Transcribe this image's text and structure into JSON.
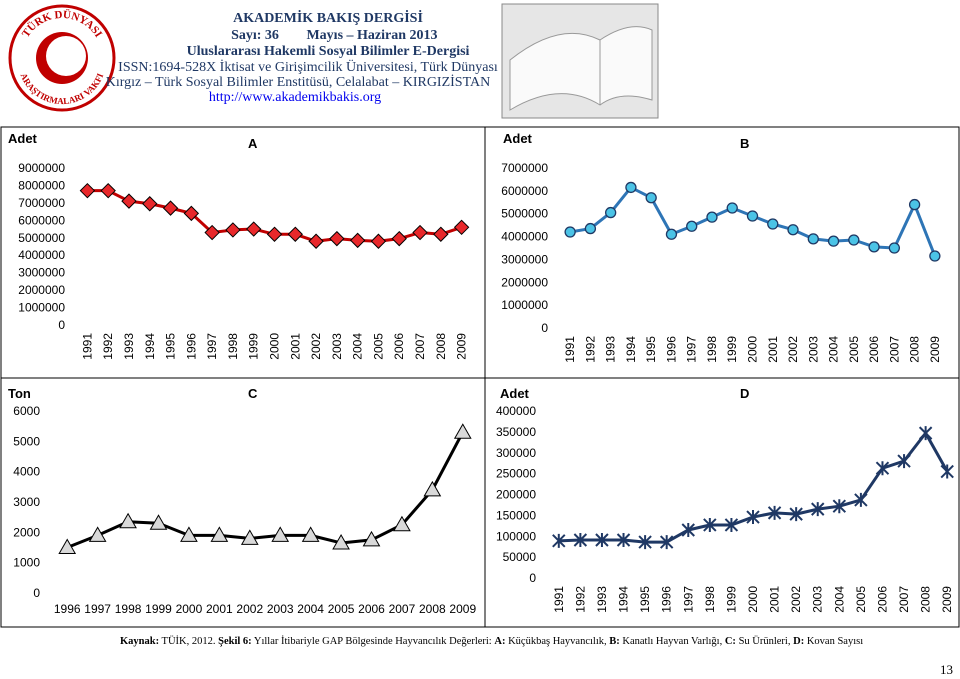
{
  "header": {
    "journal": "AKADEMİK BAKIŞ DERGİSİ",
    "issue": "Sayı: 36",
    "date": "Mayıs – Haziran 2013",
    "subtitle": "Uluslararası Hakemli Sosyal Bilimler E-Dergisi",
    "issn": "ISSN:1694-528X İktisat ve Girişimcilik Üniversitesi, Türk Dünyası",
    "institute": "Kırgız – Türk Sosyal Bilimler Enstitüsü, Celalabat – KIRGIZİSTAN",
    "url": "http://www.akademikbakis.org",
    "logo_top": "TÜRK DÜNYASI",
    "logo_bottom": "ARAŞTIRMALARI VAKFI"
  },
  "chart_data": [
    {
      "type": "line",
      "title": "A",
      "y_label": "Adet",
      "marker": "diamond",
      "color": "#c00000",
      "marker_color": "#e8282b",
      "x_labels_rotated": true,
      "categories": [
        "1991",
        "1992",
        "1993",
        "1994",
        "1995",
        "1996",
        "1997",
        "1998",
        "1999",
        "2000",
        "2001",
        "2002",
        "2003",
        "2004",
        "2005",
        "2006",
        "2007",
        "2008",
        "2009"
      ],
      "values": [
        7700000,
        7700000,
        7100000,
        6950000,
        6700000,
        6400000,
        5300000,
        5450000,
        5500000,
        5200000,
        5200000,
        4800000,
        4950000,
        4850000,
        4800000,
        4950000,
        5300000,
        5200000,
        5600000
      ],
      "ylim": [
        0,
        9000000
      ],
      "yticks": [
        0,
        1000000,
        2000000,
        3000000,
        4000000,
        5000000,
        6000000,
        7000000,
        8000000,
        9000000
      ]
    },
    {
      "type": "line",
      "title": "B",
      "y_label": "Adet",
      "marker": "circle",
      "color": "#2e75b6",
      "marker_color": "#4bc3e6",
      "x_labels_rotated": true,
      "categories": [
        "1991",
        "1992",
        "1993",
        "1994",
        "1995",
        "1996",
        "1997",
        "1998",
        "1999",
        "2000",
        "2001",
        "2002",
        "2003",
        "2004",
        "2005",
        "2006",
        "2007",
        "2008",
        "2009"
      ],
      "values": [
        4200000,
        4350000,
        5050000,
        6150000,
        5700000,
        4100000,
        4450000,
        4850000,
        5250000,
        4900000,
        4550000,
        4300000,
        3900000,
        3800000,
        3850000,
        3550000,
        3500000,
        5400000,
        3150000
      ],
      "ylim": [
        0,
        7000000
      ],
      "yticks": [
        0,
        1000000,
        2000000,
        3000000,
        4000000,
        5000000,
        6000000,
        7000000
      ]
    },
    {
      "type": "line",
      "title": "C",
      "y_label": "Ton",
      "marker": "triangle",
      "color": "#000000",
      "marker_color": "#d9d9d9",
      "x_labels_rotated": false,
      "categories": [
        "1996",
        "1997",
        "1998",
        "1999",
        "2000",
        "2001",
        "2002",
        "2003",
        "2004",
        "2005",
        "2006",
        "2007",
        "2008",
        "2009"
      ],
      "values": [
        1500,
        1900,
        2350,
        2300,
        1900,
        1900,
        1800,
        1900,
        1900,
        1650,
        1750,
        2250,
        3400,
        5300
      ],
      "ylim": [
        0,
        6000
      ],
      "yticks": [
        0,
        1000,
        2000,
        3000,
        4000,
        5000,
        6000
      ]
    },
    {
      "type": "line",
      "title": "D",
      "y_label": "Adet",
      "marker": "asterisk",
      "color": "#1f3864",
      "marker_color": "#1f3864",
      "x_labels_rotated": true,
      "categories": [
        "1991",
        "1992",
        "1993",
        "1994",
        "1995",
        "1996",
        "1997",
        "1998",
        "1999",
        "2000",
        "2001",
        "2002",
        "2003",
        "2004",
        "2005",
        "2006",
        "2007",
        "2008",
        "2009"
      ],
      "values": [
        89000,
        91000,
        91000,
        91000,
        86000,
        86000,
        115000,
        127000,
        127000,
        146000,
        156000,
        153000,
        165000,
        172000,
        187000,
        263000,
        280000,
        347000,
        255000
      ],
      "ylim": [
        0,
        400000
      ],
      "yticks": [
        0,
        50000,
        100000,
        150000,
        200000,
        250000,
        300000,
        350000,
        400000
      ]
    }
  ],
  "caption": [
    {
      "text": "Kaynak:",
      "bold": true
    },
    {
      "text": " TÜİK, 2012. ",
      "bold": false
    },
    {
      "text": "Şekil 6:",
      "bold": true
    },
    {
      "text": " Yıllar İtibariyle GAP Bölgesinde Hayvancılık Değerleri: ",
      "bold": false
    },
    {
      "text": "A:",
      "bold": true
    },
    {
      "text": " Küçükbaş Hayvancılık, ",
      "bold": false
    },
    {
      "text": "B:",
      "bold": true
    },
    {
      "text": " Kanatlı Hayvan Varlığı, ",
      "bold": false
    },
    {
      "text": "C:",
      "bold": true
    },
    {
      "text": " Su Ürünleri, ",
      "bold": false
    },
    {
      "text": "D:",
      "bold": true
    },
    {
      "text": " Kovan Sayısı",
      "bold": false
    }
  ],
  "page_number": "13"
}
